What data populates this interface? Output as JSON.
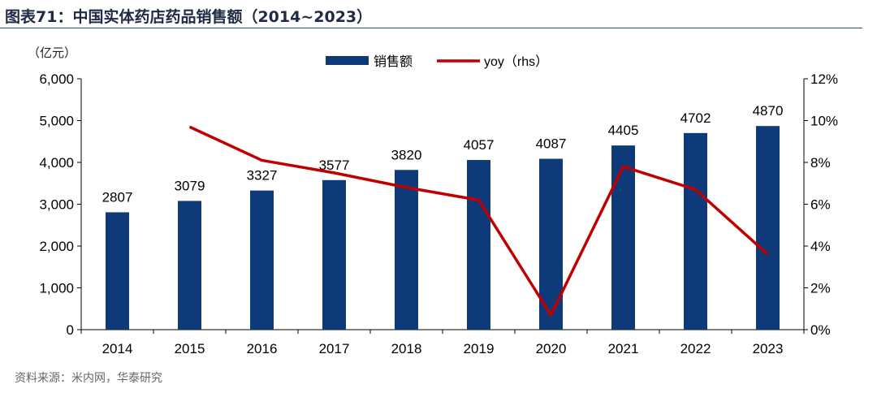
{
  "figure_label": "图表71：",
  "figure_title": "中国实体药店药品销售额（2014~2023）",
  "source_text": "资料来源：米内网，华泰研究",
  "colors": {
    "bar": "#0e3a7a",
    "line": "#c00000",
    "title_rule": "#2f4f8a"
  },
  "chart_data": {
    "type": "bar",
    "title": "中国实体药店药品销售额（2014~2023）",
    "unit_label": "（亿元）",
    "categories": [
      "2014",
      "2015",
      "2016",
      "2017",
      "2018",
      "2019",
      "2020",
      "2021",
      "2022",
      "2023"
    ],
    "series": [
      {
        "name": "销售额",
        "type": "bar",
        "axis": "left",
        "values": [
          2807,
          3079,
          3327,
          3577,
          3820,
          4057,
          4087,
          4405,
          4702,
          4870
        ],
        "data_labels": [
          "2807",
          "3079",
          "3327",
          "3577",
          "3820",
          "4057",
          "4087",
          "4405",
          "4702",
          "4870"
        ]
      },
      {
        "name": "yoy（rhs）",
        "type": "line",
        "axis": "right",
        "values": [
          null,
          9.7,
          8.1,
          7.5,
          6.8,
          6.2,
          0.7,
          7.8,
          6.7,
          3.6
        ]
      }
    ],
    "y_left": {
      "min": 0,
      "max": 6000,
      "ticks": [
        0,
        1000,
        2000,
        3000,
        4000,
        5000,
        6000
      ],
      "tick_labels": [
        "0",
        "1,000",
        "2,000",
        "3,000",
        "4,000",
        "5,000",
        "6,000"
      ]
    },
    "y_right": {
      "min": 0,
      "max": 12,
      "ticks": [
        0,
        2,
        4,
        6,
        8,
        10,
        12
      ],
      "tick_labels": [
        "0%",
        "2%",
        "4%",
        "6%",
        "8%",
        "10%",
        "12%"
      ]
    },
    "legend": {
      "position": "top-center",
      "entries": [
        "销售额",
        "yoy（rhs）"
      ]
    },
    "grid": false
  }
}
